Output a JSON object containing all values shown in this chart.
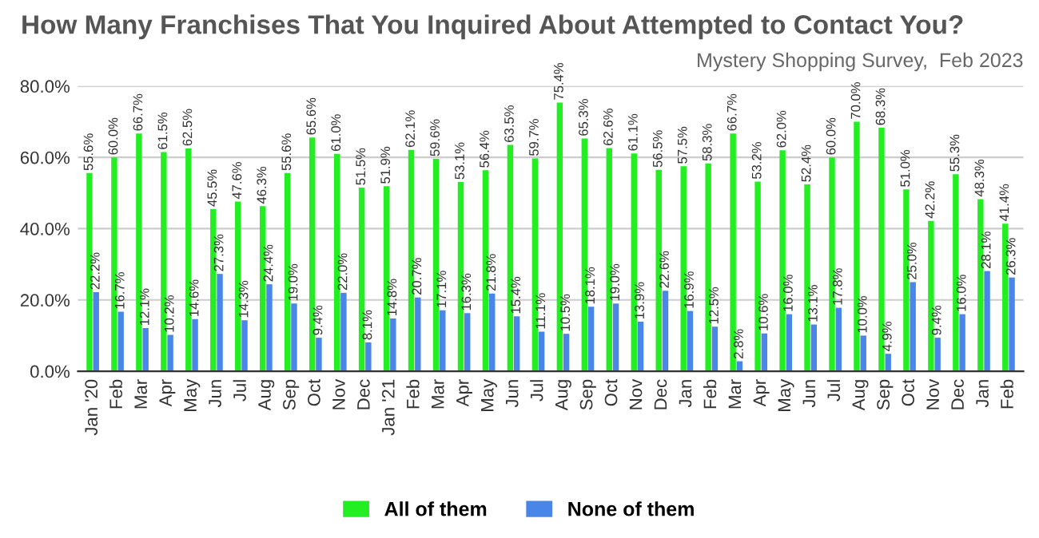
{
  "chart_data": {
    "type": "bar",
    "title": "How Many Franchises That You Inquired About Attempted to Contact You?",
    "subtitle": "Mystery Shopping Survey,  Feb 2023",
    "categories": [
      "Jan '20",
      "Feb",
      "Mar",
      "Apr",
      "May",
      "Jun",
      "Jul",
      "Aug",
      "Sep",
      "Oct",
      "Nov",
      "Dec",
      "Jan '21",
      "Feb",
      "Mar",
      "Apr",
      "May",
      "Jun",
      "Jul",
      "Aug",
      "Sep",
      "Oct",
      "Nov",
      "Dec",
      "Jan",
      "Feb",
      "Mar",
      "Apr",
      "May",
      "Jun",
      "Jul",
      "Aug",
      "Sep",
      "Oct",
      "Nov",
      "Dec",
      "Jan",
      "Feb"
    ],
    "series": [
      {
        "name": "All of them",
        "color": "#22ee22",
        "values": [
          55.6,
          60.0,
          66.7,
          61.5,
          62.5,
          45.5,
          47.6,
          46.3,
          55.6,
          65.6,
          61.0,
          51.5,
          51.9,
          62.1,
          59.6,
          53.1,
          56.4,
          63.5,
          59.7,
          75.4,
          65.3,
          62.6,
          61.1,
          56.5,
          57.5,
          58.3,
          66.7,
          53.2,
          62.0,
          52.4,
          60.0,
          70.0,
          68.3,
          51.0,
          42.2,
          55.3,
          48.3,
          41.4
        ],
        "value_labels": [
          "55.6%",
          "60.0%",
          "66.7%",
          "61.5%",
          "62.5%",
          "45.5%",
          "47.6%",
          "46.3%",
          "55.6%",
          "65.6%",
          "61.0%",
          "51.5%",
          "51.9%",
          "62.1%",
          "59.6%",
          "53.1%",
          "56.4%",
          "63.5%",
          "59.7%",
          "75.4%",
          "65.3%",
          "62.6%",
          "61.1%",
          "56.5%",
          "57.5%",
          "58.3%",
          "66.7%",
          "53.2%",
          "62.0%",
          "52.4%",
          "60.0%",
          "70.0%",
          "68.3%",
          "51.0%",
          "42.2%",
          "55.3%",
          "48.3%",
          "41.4%"
        ]
      },
      {
        "name": "None of them",
        "color": "#4a86e8",
        "values": [
          22.2,
          16.7,
          12.1,
          10.2,
          14.6,
          27.3,
          14.3,
          24.4,
          19.0,
          9.4,
          22.0,
          8.1,
          14.8,
          20.7,
          17.1,
          16.3,
          21.8,
          15.4,
          11.1,
          10.5,
          18.1,
          19.0,
          13.9,
          22.6,
          16.9,
          12.5,
          2.8,
          10.6,
          16.0,
          13.1,
          17.8,
          10.0,
          4.9,
          25.0,
          9.4,
          16.0,
          28.1,
          26.3
        ],
        "value_labels": [
          "22.2%",
          "16.7%",
          "12.1%",
          "10.2%",
          "14.6%",
          "27.3%",
          "14.3%",
          "24.4%",
          "19.0%",
          "9.4%",
          "22.0%",
          "8.1%",
          "14.8%",
          "20.7%",
          "17.1%",
          "16.3%",
          "21.8%",
          "15.4%",
          "11.1%",
          "10.5%",
          "18.1%",
          "19.0%",
          "13.9%",
          "22.6%",
          "16.9%",
          "12.5%",
          "2.8%",
          "10.6%",
          "16.0%",
          "13.1%",
          "17.8%",
          "10.0%",
          "4.9%",
          "25.0%",
          "9.4%",
          "16.0%",
          "28.1%",
          "26.3%"
        ]
      }
    ],
    "ylim": [
      0,
      80
    ],
    "yticks": [
      {
        "value": 0,
        "label": "0.0%"
      },
      {
        "value": 20,
        "label": "20.0%"
      },
      {
        "value": 40,
        "label": "40.0%"
      },
      {
        "value": 60,
        "label": "60.0%"
      },
      {
        "value": 80,
        "label": "80.0%"
      }
    ],
    "grid": "y",
    "legend": "bottom"
  }
}
